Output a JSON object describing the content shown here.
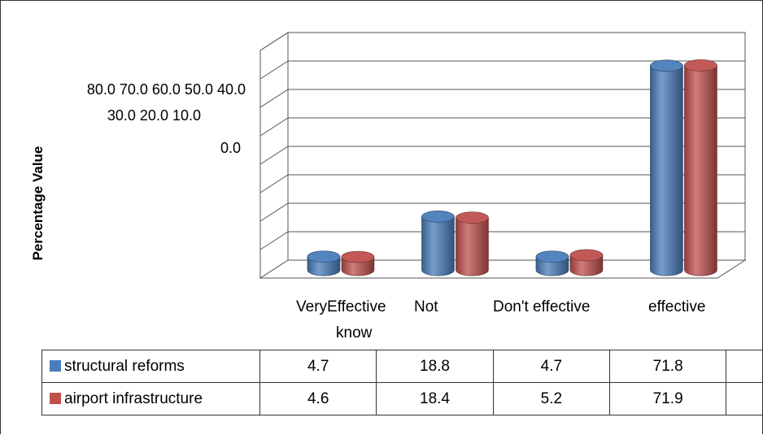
{
  "chart_data": {
    "type": "bar",
    "style": "3d-cylinder",
    "categories": [
      "VeryEffective know",
      "Not",
      "Don't effective",
      "effective"
    ],
    "category_labels": [
      {
        "line1": "VeryEffective",
        "line2": "know"
      },
      {
        "line1": "Not",
        "line2": ""
      },
      {
        "line1": "Don't effective",
        "line2": ""
      },
      {
        "line1": "effective",
        "line2": ""
      }
    ],
    "series": [
      {
        "name": "structural reforms",
        "color": "#4A7EBB",
        "values": [
          4.7,
          18.8,
          4.7,
          71.8
        ]
      },
      {
        "name": "airport infrastructure",
        "color": "#C0504D",
        "values": [
          4.6,
          18.4,
          5.2,
          71.9
        ]
      }
    ],
    "ylabel": "Percentage Value",
    "ytick_text": {
      "line1": "80.0 70.0 60.0 50.0 40.0",
      "line2": "30.0 20.0 10.0",
      "line3": "0.0"
    },
    "ylim": [
      0,
      80
    ],
    "grid": true,
    "data_table": true
  }
}
